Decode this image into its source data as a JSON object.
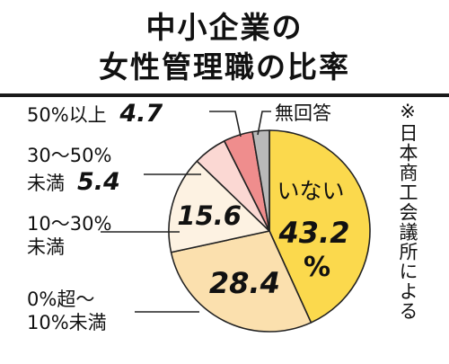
{
  "chart_data": {
    "type": "pie",
    "title": "中小企業の女性管理職の比率",
    "title_lines": [
      "中小企業の",
      "女性管理職の比率"
    ],
    "start": "12 o'clock, clockwise",
    "slices": [
      {
        "label": "いない",
        "value": 43.2,
        "value_text": "43.2",
        "unit": "%",
        "color": "#fbd94d"
      },
      {
        "label_lines": [
          "0%超～",
          "10%未満"
        ],
        "value": 28.4,
        "value_text": "28.4",
        "color": "#fbe0ae"
      },
      {
        "label_lines": [
          "10～30%",
          "未満"
        ],
        "value": 15.6,
        "value_text": "15.6",
        "color": "#fdf2e2"
      },
      {
        "label_lines": [
          "30～50%",
          "未満"
        ],
        "value": 5.4,
        "value_text": "5.4",
        "color": "#fbd8d3"
      },
      {
        "label": "50%以上",
        "value": 4.7,
        "value_text": "4.7",
        "color": "#ef8d8d"
      },
      {
        "label": "無回答",
        "value": 2.7,
        "value_text": "",
        "color": "#b9b9b9"
      }
    ],
    "source": "※日本商工会議所による"
  }
}
